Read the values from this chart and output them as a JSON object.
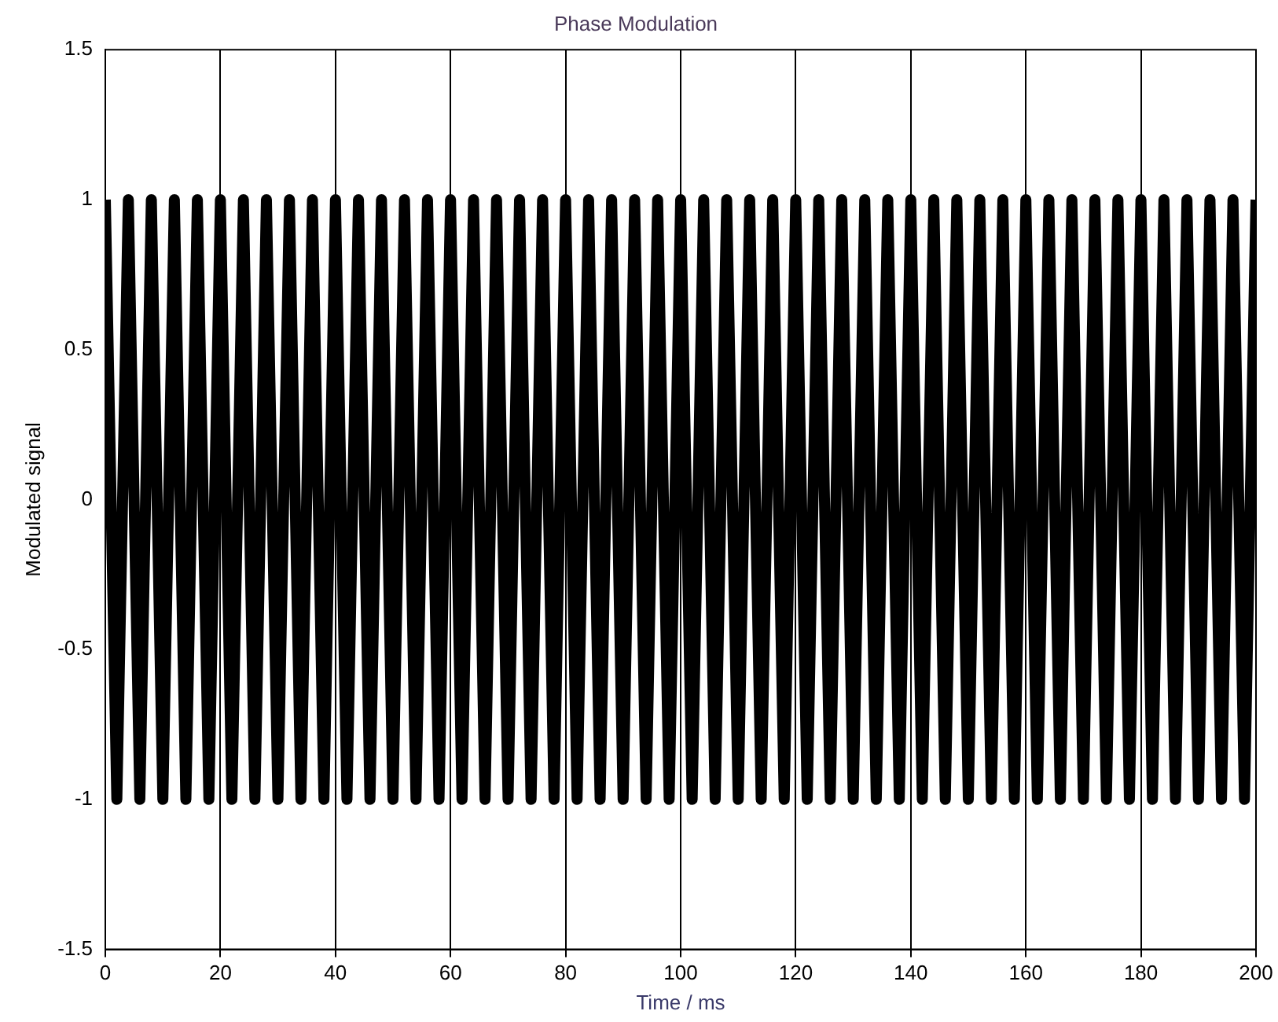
{
  "chart_data": {
    "type": "line",
    "title": "Phase Modulation",
    "xlabel": "Time / ms",
    "ylabel": "Modulated signal",
    "x": [
      0,
      2,
      4,
      6,
      8,
      10,
      12,
      14,
      16,
      18,
      20,
      22,
      24,
      26,
      28,
      30,
      32,
      34,
      36,
      38,
      40,
      42,
      44,
      46,
      48,
      50,
      52,
      54,
      56,
      58,
      60,
      62,
      64,
      66,
      68,
      70,
      72,
      74,
      76,
      78,
      80,
      82,
      84,
      86,
      88,
      90,
      92,
      94,
      96,
      98,
      100,
      102,
      104,
      106,
      108,
      110,
      112,
      114,
      116,
      118,
      120,
      122,
      124,
      126,
      128,
      130,
      132,
      134,
      136,
      138,
      140,
      142,
      144,
      146,
      148,
      150,
      152,
      154,
      156,
      158,
      160,
      162,
      164,
      166,
      168,
      170,
      172,
      174,
      176,
      178,
      180,
      182,
      184,
      186,
      188,
      190,
      192,
      194,
      196,
      198,
      200
    ],
    "series": [
      {
        "color": "#000000",
        "values": [
          1,
          -1,
          1,
          -1,
          1,
          -1,
          1,
          -1,
          1,
          -1,
          1,
          -1,
          1,
          -1,
          1,
          -1,
          1,
          -1,
          1,
          -1,
          1,
          -1,
          1,
          -1,
          1,
          -1,
          1,
          -1,
          1,
          -1,
          1,
          -1,
          1,
          -1,
          1,
          -1,
          1,
          -1,
          1,
          -1,
          1,
          -1,
          1,
          -1,
          1,
          -1,
          1,
          -1,
          1,
          -1,
          1,
          -1,
          1,
          -1,
          1,
          -1,
          1,
          -1,
          1,
          -1,
          1,
          -1,
          1,
          -1,
          1,
          -1,
          1,
          -1,
          1,
          -1,
          1,
          -1,
          1,
          -1,
          1,
          -1,
          1,
          -1,
          1,
          -1,
          1,
          -1,
          1,
          -1,
          1,
          -1,
          1,
          -1,
          1,
          -1,
          1,
          -1,
          1,
          -1,
          1,
          -1,
          1,
          -1,
          1,
          -1,
          1
        ]
      }
    ],
    "xlim": [
      0,
      200
    ],
    "xticks": [
      0,
      20,
      40,
      60,
      80,
      100,
      120,
      140,
      160,
      180,
      200
    ],
    "ylim": [
      -1.5,
      1.5
    ],
    "yticks": [
      -1.5,
      -1,
      -0.5,
      0,
      0.5,
      1,
      1.5
    ],
    "grid": "x",
    "legend": false,
    "marker": "none",
    "line_style": "solid"
  }
}
